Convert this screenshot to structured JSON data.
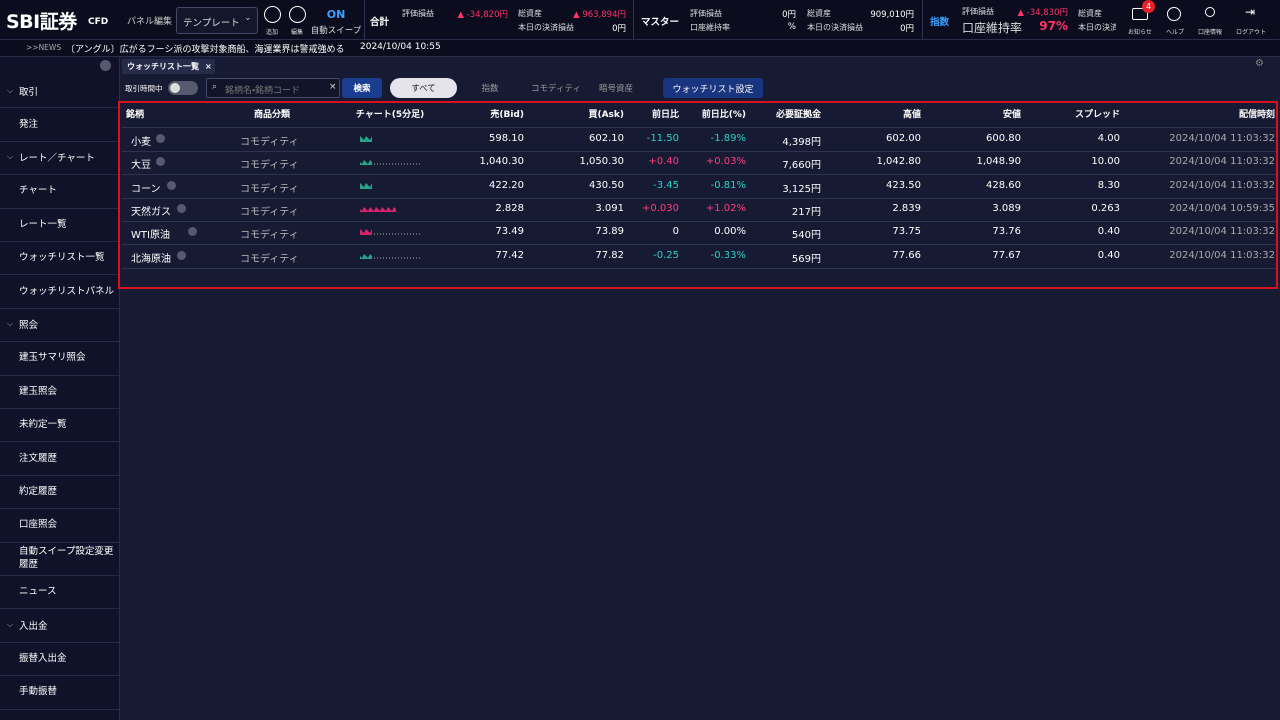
{
  "header": {
    "logo": "SBI証券",
    "logo_sub": "CFD",
    "panel_edit": "パネル編集",
    "template": "テンプレート",
    "add": "追加",
    "edit": "編集",
    "sweep_state": "ON",
    "sweep_label": "自動スイープ",
    "total": {
      "title": "合計",
      "pl_label": "評価損益",
      "pl_value": "▲ -34,820円",
      "assets_label": "総資産",
      "assets_value": "▲ 963,894円",
      "settle_label": "本日の決済損益",
      "settle_value": "0円"
    },
    "master": {
      "title": "マスター",
      "pl_label": "評価損益",
      "pl_value": "0円",
      "margin_label": "口座維持率",
      "margin_value": "%",
      "assets_label": "総資産",
      "assets_value": "909,010円",
      "settle_label": "本日の決済損益",
      "settle_value": "0円"
    },
    "index": {
      "title": "指数",
      "pl_label": "評価損益",
      "pl_value": "▲ -34,830円",
      "margin_label": "口座維持率",
      "margin_value": "97%",
      "assets_label": "総資産",
      "settle_label": "本日の決済"
    },
    "notice_badge": "4",
    "notice": "お知らせ",
    "help": "ヘルプ",
    "account": "口座情報",
    "logout": "ログアウト"
  },
  "news": {
    "tag": ">>NEWS",
    "headline": "〔アングル〕広がるフーシ派の攻撃対象商船、海運業界は警戒強める",
    "time": "2024/10/04 10:55"
  },
  "sidebar": {
    "groups": [
      {
        "title": "取引",
        "items": [
          "発注"
        ]
      },
      {
        "title": "レート／チャート",
        "items": [
          "チャート",
          "レート一覧",
          "ウォッチリスト一覧",
          "ウォッチリストパネル"
        ]
      },
      {
        "title": "照会",
        "items": [
          "建玉サマリ照会",
          "建玉照会",
          "未約定一覧",
          "注文履歴",
          "約定履歴",
          "口座照会",
          "自動スイープ設定変更履歴",
          "ニュース"
        ]
      },
      {
        "title": "入出金",
        "items": [
          "振替入出金",
          "手動振替"
        ]
      }
    ]
  },
  "tab": {
    "title": "ウォッチリスト一覧"
  },
  "toolbar": {
    "trading_hours": "取引時間中",
    "search_placeholder": "銘柄名・銘柄コード",
    "search": "検索",
    "filters": [
      "すべて",
      "指数",
      "コモディティ",
      "暗号資産"
    ],
    "settings": "ウォッチリスト設定"
  },
  "table": {
    "columns": [
      "銘柄",
      "商品分類",
      "チャート(5分足)",
      "売(Bid)",
      "買(Ask)",
      "前日比",
      "前日比(%)",
      "必要証拠金",
      "高値",
      "安値",
      "スプレッド",
      "配信時刻"
    ],
    "rows": [
      [
        "小麦",
        "コモディティ",
        "598.10",
        "602.10",
        "-11.50",
        "-1.89%",
        "4,398円",
        "602.00",
        "600.80",
        "4.00",
        "2024/10/04 11:03:32"
      ],
      [
        "大豆",
        "コモディティ",
        "1,040.30",
        "1,050.30",
        "+0.40",
        "+0.03%",
        "7,660円",
        "1,042.80",
        "1,048.90",
        "10.00",
        "2024/10/04 11:03:32"
      ],
      [
        "コーン",
        "コモディティ",
        "422.20",
        "430.50",
        "-3.45",
        "-0.81%",
        "3,125円",
        "423.50",
        "428.60",
        "8.30",
        "2024/10/04 11:03:32"
      ],
      [
        "天然ガス",
        "コモディティ",
        "2.828",
        "3.091",
        "+0.030",
        "+1.02%",
        "217円",
        "2.839",
        "3.089",
        "0.263",
        "2024/10/04 10:59:35"
      ],
      [
        "WTI原油",
        "コモディティ",
        "73.49",
        "73.89",
        "0",
        "0.00%",
        "540円",
        "73.75",
        "73.76",
        "0.40",
        "2024/10/04 11:03:32"
      ],
      [
        "北海原油",
        "コモディティ",
        "77.42",
        "77.82",
        "-0.25",
        "-0.33%",
        "569円",
        "77.66",
        "77.67",
        "0.40",
        "2024/10/04 11:03:32"
      ]
    ]
  }
}
